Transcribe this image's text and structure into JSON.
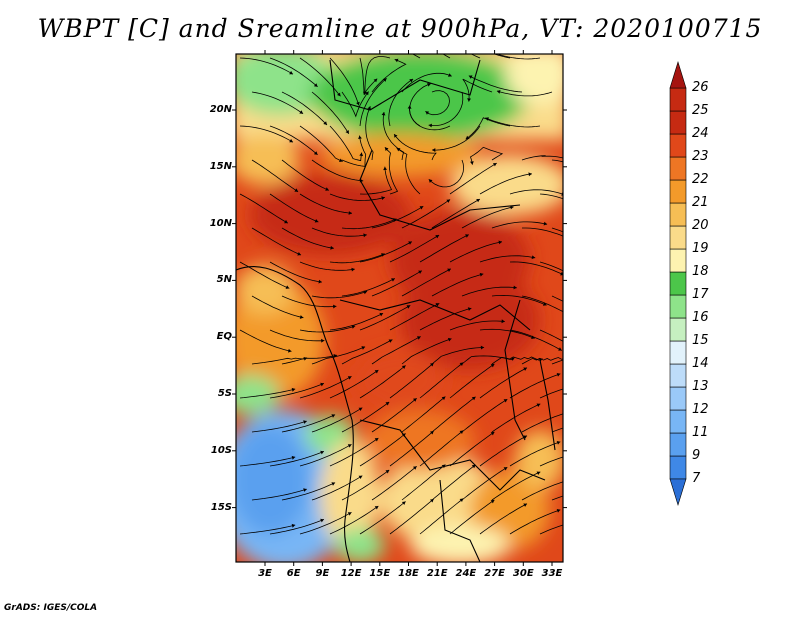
{
  "title": "WBPT [C] and Sreamline at 900hPa, VT: 2020100715",
  "credit": "GrADS: IGES/COLA",
  "map": {
    "lon_labels": [
      "3E",
      "6E",
      "9E",
      "12E",
      "15E",
      "18E",
      "21E",
      "24E",
      "27E",
      "30E",
      "33E"
    ],
    "lat_labels": [
      "20N",
      "15N",
      "10N",
      "5N",
      "EQ",
      "5S",
      "10S",
      "15S"
    ],
    "colorbar": {
      "levels": [
        "7",
        "9",
        "11",
        "12",
        "13",
        "14",
        "15",
        "16",
        "17",
        "18",
        "19",
        "20",
        "21",
        "22",
        "23",
        "24",
        "25",
        "26"
      ],
      "colors": [
        "#2b6fd6",
        "#3f88e6",
        "#5aa0ef",
        "#78b6f5",
        "#9ac9f8",
        "#bddcf9",
        "#e2f2fb",
        "#c6f0c0",
        "#8ee38a",
        "#4cc64a",
        "#fdf3b0",
        "#fadb8a",
        "#f6be55",
        "#f39a2a",
        "#ee7624",
        "#e0481a",
        "#c62a12",
        "#a51410"
      ]
    }
  }
}
